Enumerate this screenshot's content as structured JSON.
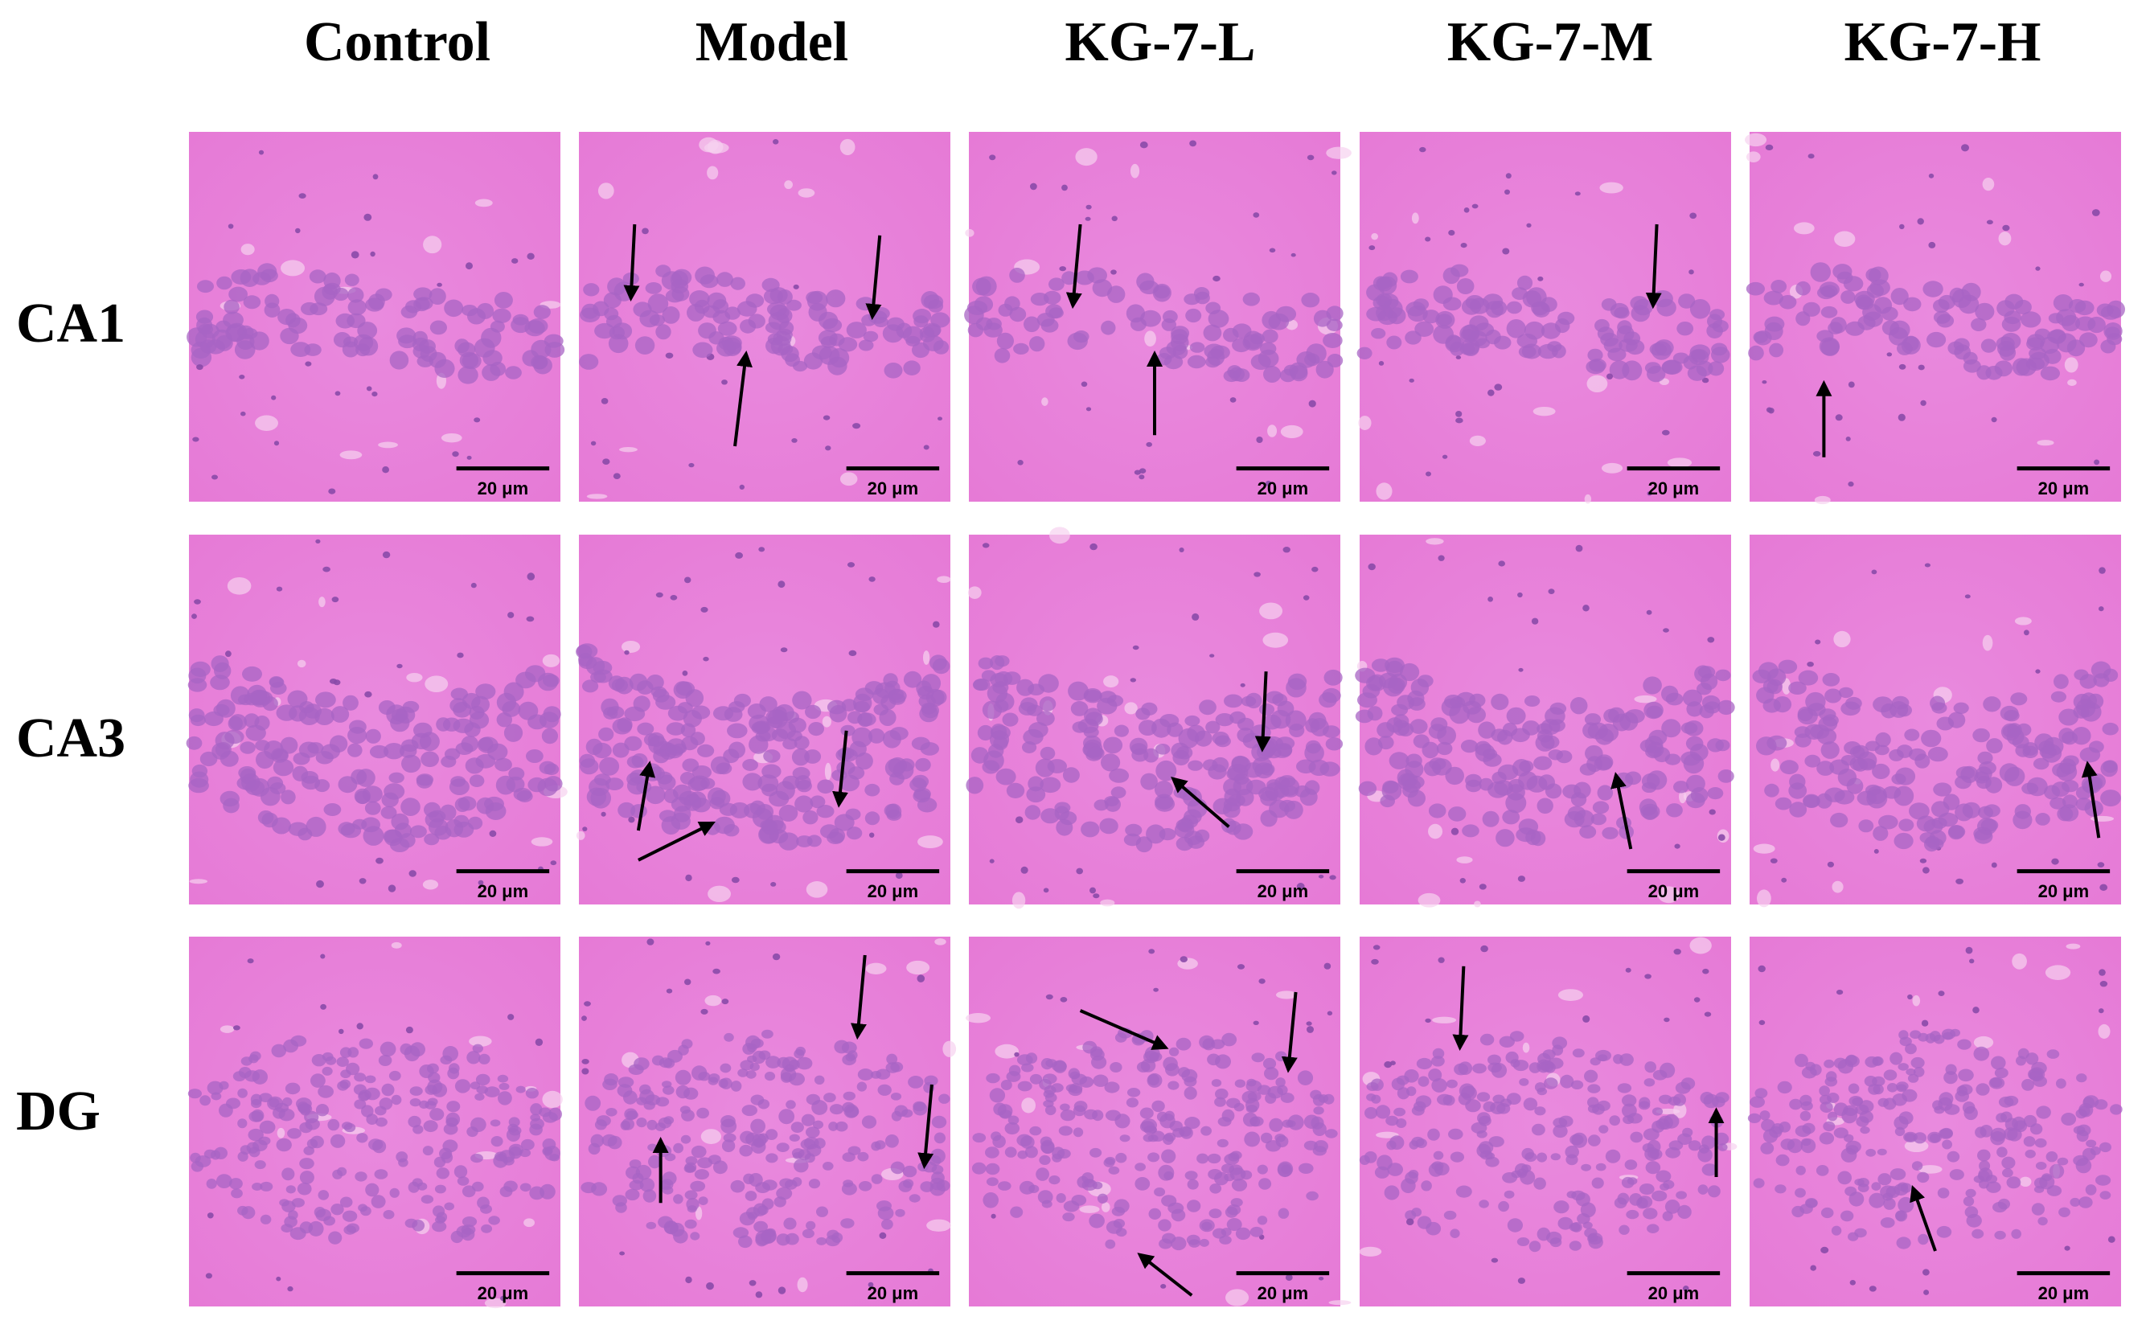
{
  "columns": [
    "Control",
    "Model",
    "KG-7-L",
    "KG-7-M",
    "KG-7-H"
  ],
  "rows": [
    {
      "label": "CA1",
      "panels": [
        {
          "scale_bar": "20 μm"
        },
        {
          "scale_bar": "20 μm"
        },
        {
          "scale_bar": "20 μm"
        },
        {
          "scale_bar": "20 μm"
        },
        {
          "scale_bar": "20 μm"
        }
      ]
    },
    {
      "label": "CA3",
      "panels": [
        {
          "scale_bar": "20 μm"
        },
        {
          "scale_bar": "20 μm"
        },
        {
          "scale_bar": "20 μm"
        },
        {
          "scale_bar": "20 μm"
        },
        {
          "scale_bar": "20 μm"
        }
      ]
    },
    {
      "label": "DG",
      "panels": [
        {
          "scale_bar": "20 μm"
        },
        {
          "scale_bar": "20 μm"
        },
        {
          "scale_bar": "20 μm"
        },
        {
          "scale_bar": "20 μm"
        },
        {
          "scale_bar": "20 μm"
        }
      ]
    }
  ]
}
